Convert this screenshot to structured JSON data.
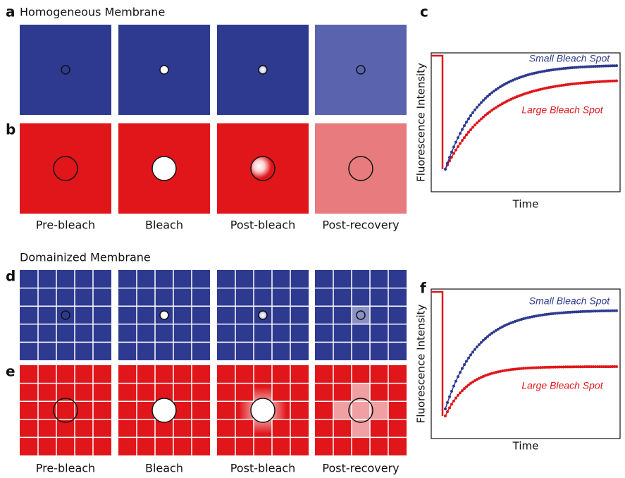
{
  "sections": [
    {
      "title": "Homogeneous Membrane",
      "rows": [
        "a",
        "b"
      ],
      "columns": [
        "Pre-bleach",
        "Bleach",
        "Post-bleach",
        "Post-recovery"
      ],
      "plot": {
        "label": "c",
        "y_axis": "Fluorescence Intensity",
        "x_axis": "Time",
        "curves": [
          "Small Bleach Spot",
          "Large Bleach Spot"
        ]
      }
    },
    {
      "title": "Domainized Membrane",
      "rows": [
        "d",
        "e"
      ],
      "columns": [
        "Pre-bleach",
        "Bleach",
        "Post-bleach",
        "Post-recovery"
      ],
      "plot": {
        "label": "f",
        "y_axis": "Fluorescence Intensity",
        "x_axis": "Time",
        "curves": [
          "Small Bleach Spot",
          "Large Bleach Spot"
        ]
      }
    }
  ]
}
